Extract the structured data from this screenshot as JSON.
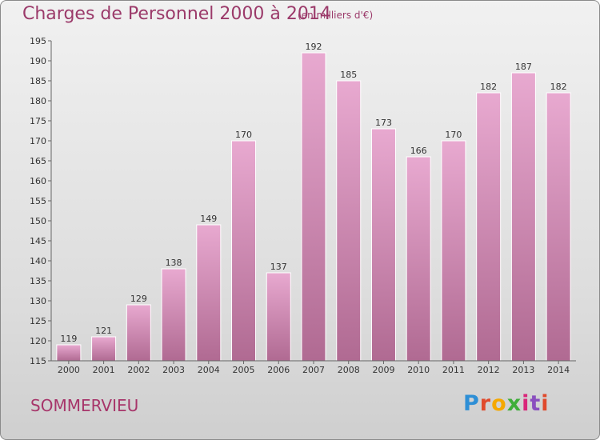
{
  "header": {
    "title": "Charges de Personnel 2000 à 2014",
    "subtitle": "(en milliers d'€)"
  },
  "footer": {
    "commune": "SOMMERVIEU",
    "logo": "Proxiti",
    "logo_colors": [
      "#2e8fd6",
      "#e04a2c",
      "#f5a800",
      "#3fae3a",
      "#d9267a",
      "#8a4fbf",
      "#e04a2c"
    ]
  },
  "colors": {
    "bar_top": "#e8a9d0",
    "bar_bottom": "#b06a92",
    "text_accent": "#9b3a6a"
  },
  "chart_data": {
    "type": "bar",
    "categories": [
      "2000",
      "2001",
      "2002",
      "2003",
      "2004",
      "2005",
      "2006",
      "2007",
      "2008",
      "2009",
      "2010",
      "2011",
      "2012",
      "2013",
      "2014"
    ],
    "values": [
      119,
      121,
      129,
      138,
      149,
      170,
      137,
      192,
      185,
      173,
      166,
      170,
      182,
      187,
      182
    ],
    "ylim": [
      115,
      195
    ],
    "yticks": [
      115,
      120,
      125,
      130,
      135,
      140,
      145,
      150,
      155,
      160,
      165,
      170,
      175,
      180,
      185,
      190,
      195
    ],
    "title": "Charges de Personnel 2000 à 2014",
    "xlabel": "",
    "ylabel": "",
    "grid": false,
    "data_labels": true
  }
}
